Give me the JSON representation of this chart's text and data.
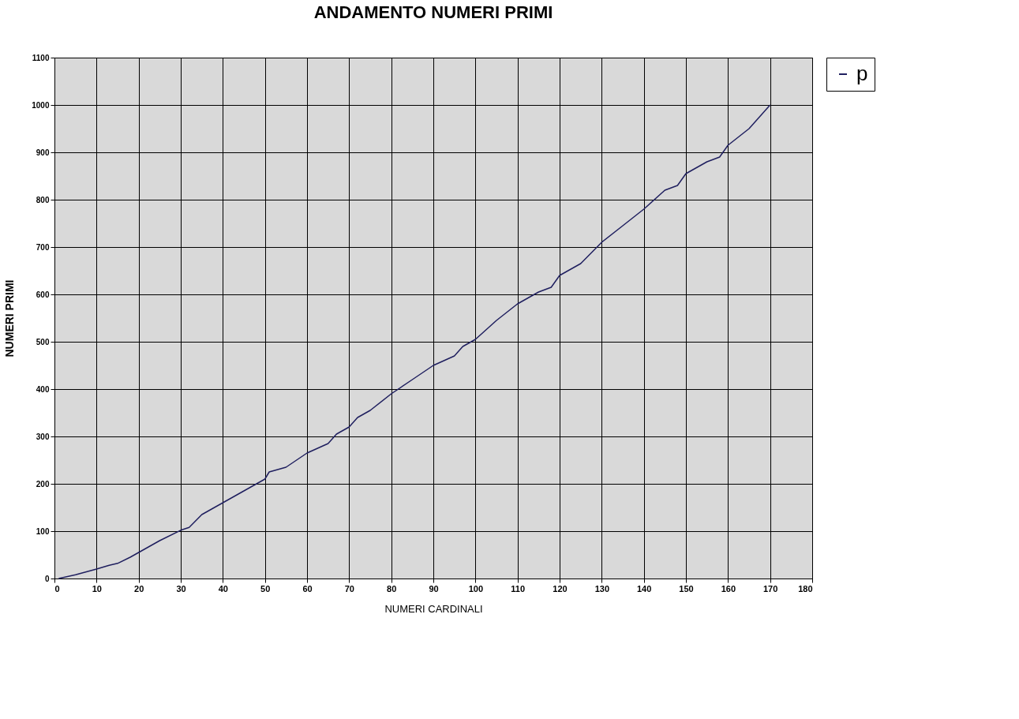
{
  "chart_data": {
    "type": "line",
    "title": "ANDAMENTO NUMERI PRIMI",
    "xlabel": "NUMERI CARDINALI",
    "ylabel": "NUMERI PRIMI",
    "x": [
      1,
      5,
      10,
      13,
      15,
      18,
      20,
      25,
      30,
      32,
      35,
      40,
      45,
      50,
      51,
      55,
      60,
      65,
      67,
      70,
      72,
      75,
      80,
      85,
      90,
      95,
      97,
      100,
      105,
      110,
      115,
      118,
      120,
      125,
      130,
      135,
      140,
      145,
      148,
      150,
      155,
      158,
      160,
      165,
      170
    ],
    "series": [
      {
        "name": "p",
        "color": "#1f1f5f",
        "values": [
          0,
          8,
          20,
          28,
          32,
          45,
          55,
          80,
          102,
          108,
          135,
          160,
          185,
          210,
          225,
          235,
          265,
          285,
          305,
          320,
          340,
          355,
          390,
          420,
          450,
          470,
          490,
          505,
          545,
          580,
          605,
          615,
          640,
          665,
          710,
          745,
          780,
          820,
          830,
          855,
          880,
          890,
          915,
          950,
          1000
        ]
      }
    ],
    "xlim": [
      0,
      180
    ],
    "xticks": [
      0,
      10,
      20,
      30,
      40,
      50,
      60,
      70,
      80,
      90,
      100,
      110,
      120,
      130,
      140,
      150,
      160,
      170,
      180
    ],
    "ylim": [
      0,
      1100
    ],
    "yticks": [
      0,
      100,
      200,
      300,
      400,
      500,
      600,
      700,
      800,
      900,
      1000,
      1100
    ],
    "grid": true,
    "legend": "right",
    "marker": "none",
    "line_style": "solid"
  }
}
